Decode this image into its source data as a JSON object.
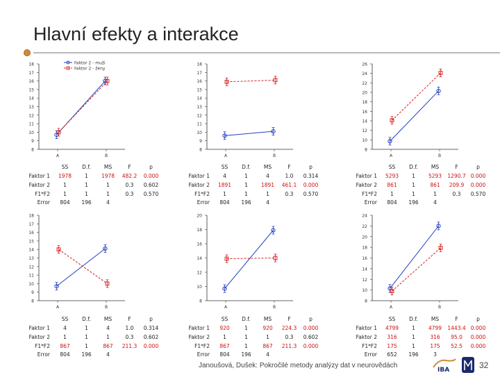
{
  "title": "Hlavní efekty a interakce",
  "footer": "Janoušová, Dušek: Pokročilé metody analýzy dat v neurovědách",
  "page_number": "32",
  "colors": {
    "series1": "#1f3fbf",
    "series2": "#d42020",
    "bullet": "#d08a3a"
  },
  "legend": {
    "items": [
      "Faktor 2 - muži",
      "Faktor 2 - ženy"
    ]
  },
  "table_headers": [
    "SS",
    "D.f.",
    "MS",
    "F",
    "p"
  ],
  "chart_data": [
    {
      "type": "line",
      "x": [
        "A",
        "B"
      ],
      "ylim": [
        8,
        18
      ],
      "yticks": [
        8,
        9,
        10,
        11,
        12,
        13,
        14,
        15,
        16,
        17,
        18
      ],
      "series": [
        {
          "name": "Faktor 2 - muži",
          "values": [
            9.7,
            16
          ]
        },
        {
          "name": "Faktor 2 - ženy",
          "values": [
            10,
            16
          ]
        }
      ],
      "legend": true
    },
    {
      "type": "line",
      "x": [
        "A",
        "B"
      ],
      "ylim": [
        8,
        18
      ],
      "yticks": [
        8,
        9,
        10,
        11,
        12,
        13,
        14,
        15,
        16,
        17,
        18
      ],
      "series": [
        {
          "values": [
            9.6,
            10.1
          ]
        },
        {
          "values": [
            15.9,
            16.1
          ]
        }
      ]
    },
    {
      "type": "line",
      "x": [
        "A",
        "B"
      ],
      "ylim": [
        8,
        26
      ],
      "yticks": [
        8,
        10,
        12,
        14,
        16,
        18,
        20,
        22,
        24,
        26
      ],
      "series": [
        {
          "values": [
            9.7,
            20.3
          ]
        },
        {
          "values": [
            14.1,
            24.1
          ]
        }
      ]
    },
    {
      "type": "line",
      "x": [
        "A",
        "B"
      ],
      "ylim": [
        8,
        18
      ],
      "yticks": [
        8,
        9,
        10,
        11,
        12,
        13,
        14,
        15,
        16,
        17,
        18
      ],
      "series": [
        {
          "values": [
            9.7,
            14.1
          ]
        },
        {
          "values": [
            14,
            10
          ]
        }
      ]
    },
    {
      "type": "line",
      "x": [
        "A",
        "B"
      ],
      "ylim": [
        8,
        20
      ],
      "yticks": [
        8,
        10,
        12,
        14,
        16,
        18,
        20
      ],
      "series": [
        {
          "values": [
            9.7,
            17.9
          ]
        },
        {
          "values": [
            13.9,
            14
          ]
        }
      ]
    },
    {
      "type": "line",
      "x": [
        "A",
        "B"
      ],
      "ylim": [
        8,
        24
      ],
      "yticks": [
        8,
        10,
        12,
        14,
        16,
        18,
        20,
        22,
        24
      ],
      "series": [
        {
          "values": [
            10.3,
            22
          ]
        },
        {
          "values": [
            9.8,
            17.9
          ]
        }
      ]
    }
  ],
  "anova_tables": [
    {
      "rows": [
        {
          "label": "Faktor 1",
          "cells": [
            "1978",
            "1",
            "1978",
            "482.2",
            "0.000"
          ],
          "hot": [
            0,
            2,
            3,
            4
          ]
        },
        {
          "label": "Faktor 2",
          "cells": [
            "1",
            "1",
            "1",
            "0.3",
            "0.602"
          ],
          "hot": []
        },
        {
          "label": "F1*F2",
          "cells": [
            "1",
            "1",
            "1",
            "0.3",
            "0.570"
          ],
          "hot": []
        },
        {
          "label": "Error",
          "cells": [
            "804",
            "196",
            "4",
            "",
            ""
          ],
          "hot": []
        }
      ]
    },
    {
      "rows": [
        {
          "label": "Faktor 1",
          "cells": [
            "4",
            "1",
            "4",
            "1.0",
            "0.314"
          ],
          "hot": []
        },
        {
          "label": "Faktor 2",
          "cells": [
            "1891",
            "1",
            "1891",
            "461.1",
            "0.000"
          ],
          "hot": [
            0,
            2,
            3,
            4
          ]
        },
        {
          "label": "F1*F2",
          "cells": [
            "1",
            "1",
            "1",
            "0.3",
            "0.570"
          ],
          "hot": []
        },
        {
          "label": "Error",
          "cells": [
            "804",
            "196",
            "4",
            "",
            ""
          ],
          "hot": []
        }
      ]
    },
    {
      "rows": [
        {
          "label": "Faktor 1",
          "cells": [
            "5293",
            "1",
            "5293",
            "1290.7",
            "0.000"
          ],
          "hot": [
            0,
            2,
            3,
            4
          ]
        },
        {
          "label": "Faktor 2",
          "cells": [
            "861",
            "1",
            "861",
            "209.9",
            "0.000"
          ],
          "hot": [
            0,
            2,
            3,
            4
          ]
        },
        {
          "label": "F1*F2",
          "cells": [
            "1",
            "1",
            "1",
            "0.3",
            "0.570"
          ],
          "hot": []
        },
        {
          "label": "Error",
          "cells": [
            "804",
            "196",
            "4",
            "",
            ""
          ],
          "hot": []
        }
      ]
    },
    {
      "rows": [
        {
          "label": "Faktor 1",
          "cells": [
            "4",
            "1",
            "4",
            "1.0",
            "0.314"
          ],
          "hot": []
        },
        {
          "label": "Faktor 2",
          "cells": [
            "1",
            "1",
            "1",
            "0.3",
            "0.602"
          ],
          "hot": []
        },
        {
          "label": "F1*F2",
          "cells": [
            "867",
            "1",
            "867",
            "211.3",
            "0.000"
          ],
          "hot": [
            0,
            2,
            3,
            4
          ]
        },
        {
          "label": "Error",
          "cells": [
            "804",
            "196",
            "4",
            "",
            ""
          ],
          "hot": []
        }
      ]
    },
    {
      "rows": [
        {
          "label": "Faktor 1",
          "cells": [
            "920",
            "1",
            "920",
            "224.3",
            "0.000"
          ],
          "hot": [
            0,
            2,
            3,
            4
          ]
        },
        {
          "label": "Faktor 2",
          "cells": [
            "1",
            "1",
            "1",
            "0.3",
            "0.602"
          ],
          "hot": []
        },
        {
          "label": "F1*F2",
          "cells": [
            "867",
            "1",
            "867",
            "211.3",
            "0.000"
          ],
          "hot": [
            0,
            2,
            3,
            4
          ]
        },
        {
          "label": "Error",
          "cells": [
            "804",
            "196",
            "4",
            "",
            ""
          ],
          "hot": []
        }
      ]
    },
    {
      "rows": [
        {
          "label": "Faktor 1",
          "cells": [
            "4799",
            "1",
            "4799",
            "1443.4",
            "0.000"
          ],
          "hot": [
            0,
            2,
            3,
            4
          ]
        },
        {
          "label": "Faktor 2",
          "cells": [
            "316",
            "1",
            "316",
            "95.0",
            "0.000"
          ],
          "hot": [
            0,
            2,
            3,
            4
          ]
        },
        {
          "label": "F1*F2",
          "cells": [
            "175",
            "1",
            "175",
            "52.5",
            "0.000"
          ],
          "hot": [
            0,
            2,
            3,
            4
          ]
        },
        {
          "label": "Error",
          "cells": [
            "652",
            "196",
            "3",
            "",
            ""
          ],
          "hot": []
        }
      ]
    }
  ]
}
